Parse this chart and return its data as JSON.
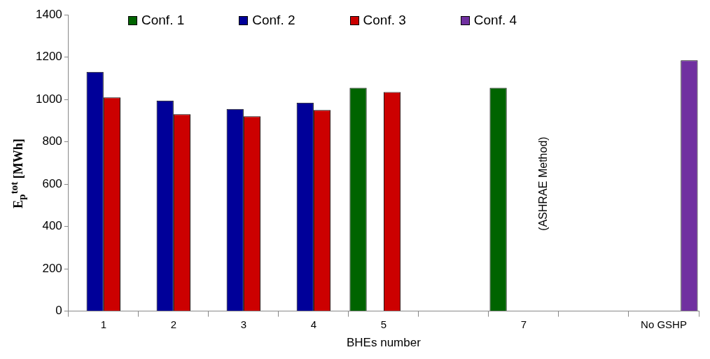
{
  "chart_data": {
    "type": "bar",
    "xlabel": "BHEs number",
    "ylabel": "E$_{p}$$^{tot}$ [MWh]",
    "categories": [
      "1",
      "2",
      "3",
      "4",
      "5",
      null,
      "7",
      null,
      "No GSHP"
    ],
    "series": [
      {
        "name": "Conf. 1",
        "color": "#006400",
        "values": [
          null,
          null,
          null,
          null,
          1055,
          null,
          1055,
          null,
          null
        ]
      },
      {
        "name": "Conf. 2",
        "color": "#000099",
        "values": [
          1130,
          995,
          955,
          985,
          null,
          null,
          null,
          null,
          null
        ]
      },
      {
        "name": "Conf. 3",
        "color": "#cc0000",
        "values": [
          1010,
          930,
          920,
          950,
          1035,
          null,
          null,
          null,
          null
        ]
      },
      {
        "name": "Conf. 4",
        "color": "#7030a0",
        "values": [
          null,
          null,
          null,
          null,
          null,
          null,
          null,
          null,
          1185
        ]
      }
    ],
    "ylim": [
      0,
      1400
    ],
    "yticks": [
      0,
      200,
      400,
      600,
      800,
      1000,
      1200,
      1400
    ],
    "annotations": [
      "(ASHRAE Method)"
    ],
    "grid": false,
    "legend": "top"
  }
}
